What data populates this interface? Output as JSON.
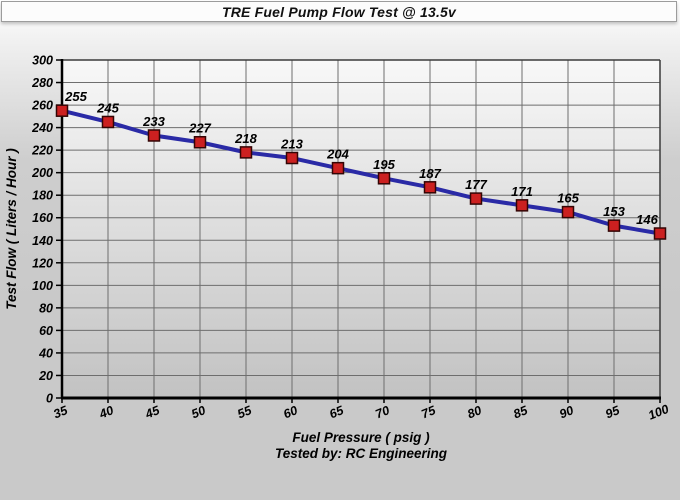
{
  "header": {
    "title": "TRE Fuel Pump Flow Test @ 13.5v"
  },
  "chart_data": {
    "type": "line",
    "title": "TRE Fuel Pump Flow Test @ 13.5v",
    "x": [
      35,
      40,
      45,
      50,
      55,
      60,
      65,
      70,
      75,
      80,
      85,
      90,
      95,
      100
    ],
    "series": [
      {
        "name": "Test Flow",
        "values": [
          255,
          245,
          233,
          227,
          218,
          213,
          204,
          195,
          187,
          177,
          171,
          165,
          153,
          146
        ]
      }
    ],
    "data_labels": [
      255,
      245,
      233,
      227,
      218,
      213,
      204,
      195,
      187,
      177,
      171,
      165,
      153,
      146
    ],
    "xlabel": "Fuel Pressure ( psig )",
    "ylabel": "Test Flow ( Liters / Hour )",
    "footer": "Tested by: RC Engineering",
    "xlim": [
      35,
      100
    ],
    "ylim": [
      0,
      300
    ],
    "x_tick_step": 5,
    "y_tick_step": 20,
    "grid": true,
    "legend_position": "none",
    "colors": {
      "line": "#2a2aa6",
      "marker_fill": "#cc2020",
      "marker_border": "#330505",
      "grid": "#6e6e6e",
      "axis": "#000000",
      "plot_border": "#3a3a3a",
      "text": "#000000",
      "plot_bg_top": "#f8f8f8",
      "plot_bg_bottom": "#c2c2c2",
      "page_bg": "#c9c9c9",
      "title_bg": "#fcfcfc",
      "title_border": "#9c9c9c"
    }
  }
}
